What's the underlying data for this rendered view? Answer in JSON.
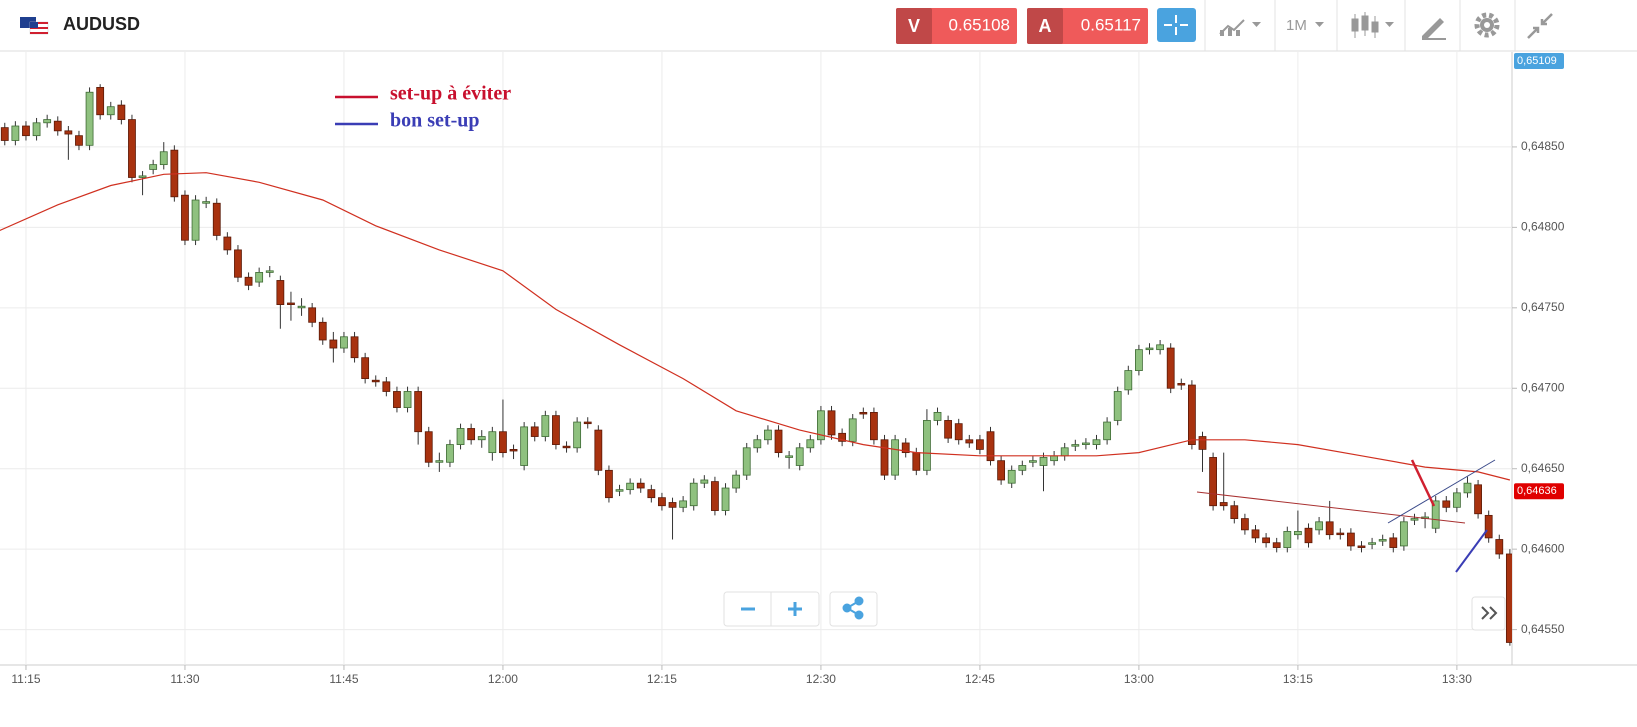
{
  "header": {
    "symbol": "AUDUSD",
    "sell_label": "V",
    "sell_price": 0.65108,
    "buy_label": "A",
    "buy_price": 0.65117,
    "timeframe": "1M"
  },
  "chart_data": {
    "type": "candlestick",
    "open": [
      0.64862,
      0.64854,
      0.64863,
      0.64857,
      0.64865,
      0.64866,
      0.6486,
      0.64857,
      0.64851,
      0.64887,
      0.6487,
      0.64876,
      0.64867,
      0.64831,
      0.64836,
      0.64839,
      0.64848,
      0.6482,
      0.64792,
      0.64815,
      0.64815,
      0.64794,
      0.64786,
      0.64769,
      0.64766,
      0.64772,
      0.64767,
      0.64753,
      0.6475,
      0.6475,
      0.64741,
      0.6473,
      0.64725,
      0.64732,
      0.64719,
      0.64705,
      0.64704,
      0.64698,
      0.64688,
      0.64698,
      0.64673,
      0.64654,
      0.64654,
      0.64665,
      0.64675,
      0.64668,
      0.6466,
      0.64673,
      0.64662,
      0.64652,
      0.64676,
      0.6467,
      0.64683,
      0.64664,
      0.64663,
      0.64679,
      0.64674,
      0.64649,
      0.64636,
      0.64637,
      0.64641,
      0.64637,
      0.64632,
      0.64629,
      0.64626,
      0.64627,
      0.64641,
      0.64642,
      0.64624,
      0.64638,
      0.64646,
      0.64663,
      0.64668,
      0.64674,
      0.64657,
      0.64652,
      0.64663,
      0.64668,
      0.64686,
      0.64672,
      0.64667,
      0.64685,
      0.64685,
      0.64668,
      0.64646,
      0.64666,
      0.6466,
      0.64649,
      0.6468,
      0.6468,
      0.64678,
      0.64668,
      0.64668,
      0.64673,
      0.64655,
      0.64641,
      0.64649,
      0.64654,
      0.64652,
      0.64655,
      0.64658,
      0.64664,
      0.64665,
      0.64665,
      0.64668,
      0.6468,
      0.64699,
      0.64711,
      0.64724,
      0.64724,
      0.64725,
      0.64703,
      0.64702,
      0.6467,
      0.64657,
      0.64629,
      0.64627,
      0.64619,
      0.64612,
      0.64607,
      0.64604,
      0.64601,
      0.64609,
      0.64613,
      0.64612,
      0.64617,
      0.6461,
      0.6461,
      0.64602,
      0.64603,
      0.64605,
      0.64607,
      0.64602,
      0.64618,
      0.64619,
      0.64613,
      0.6463,
      0.64626,
      0.64635,
      0.6464,
      0.64621,
      0.64606,
      0.64597
    ],
    "high": [
      0.64865,
      0.64866,
      0.64866,
      0.64868,
      0.6487,
      0.64869,
      0.64863,
      0.6486,
      0.64887,
      0.64889,
      0.64878,
      0.64879,
      0.6487,
      0.64835,
      0.64842,
      0.64853,
      0.64851,
      0.64823,
      0.6482,
      0.64819,
      0.64818,
      0.64797,
      0.64789,
      0.64772,
      0.64775,
      0.64776,
      0.6477,
      0.6476,
      0.64756,
      0.64753,
      0.64744,
      0.64735,
      0.64735,
      0.64735,
      0.64722,
      0.64708,
      0.64707,
      0.64701,
      0.64701,
      0.64701,
      0.64676,
      0.6466,
      0.64668,
      0.64678,
      0.64678,
      0.64674,
      0.64676,
      0.64693,
      0.64665,
      0.64679,
      0.64679,
      0.64686,
      0.64686,
      0.64667,
      0.64682,
      0.64682,
      0.64677,
      0.64652,
      0.6464,
      0.64644,
      0.64644,
      0.6464,
      0.64635,
      0.64632,
      0.64633,
      0.64644,
      0.64646,
      0.64645,
      0.64641,
      0.64649,
      0.64666,
      0.64671,
      0.64677,
      0.64677,
      0.64661,
      0.64666,
      0.64671,
      0.64689,
      0.64689,
      0.64675,
      0.64684,
      0.64688,
      0.64688,
      0.64671,
      0.64671,
      0.64669,
      0.64663,
      0.64687,
      0.64688,
      0.64683,
      0.64681,
      0.64671,
      0.64671,
      0.64676,
      0.64658,
      0.64652,
      0.64655,
      0.64658,
      0.6466,
      0.64661,
      0.64666,
      0.64668,
      0.64669,
      0.64671,
      0.64682,
      0.64701,
      0.64714,
      0.64727,
      0.64728,
      0.6473,
      0.64728,
      0.64706,
      0.64705,
      0.64673,
      0.6466,
      0.6466,
      0.6463,
      0.64622,
      0.64615,
      0.6461,
      0.64607,
      0.64614,
      0.64624,
      0.64616,
      0.6462,
      0.6463,
      0.64613,
      0.64613,
      0.64605,
      0.64607,
      0.64609,
      0.6461,
      0.6462,
      0.64622,
      0.64623,
      0.64633,
      0.64633,
      0.64638,
      0.64645,
      0.64643,
      0.64624,
      0.64609,
      0.646
    ],
    "low": [
      0.64851,
      0.64851,
      0.64854,
      0.64854,
      0.64862,
      0.64857,
      0.64842,
      0.64848,
      0.64848,
      0.64867,
      0.64867,
      0.64864,
      0.64828,
      0.6482,
      0.64833,
      0.64836,
      0.64816,
      0.64789,
      0.64789,
      0.64812,
      0.64792,
      0.64783,
      0.64766,
      0.64761,
      0.64763,
      0.64769,
      0.64737,
      0.64742,
      0.64745,
      0.64738,
      0.64727,
      0.64716,
      0.64722,
      0.64716,
      0.64703,
      0.64701,
      0.64695,
      0.64685,
      0.64685,
      0.64665,
      0.64651,
      0.64648,
      0.64651,
      0.64662,
      0.64665,
      0.64663,
      0.64655,
      0.64657,
      0.64656,
      0.64649,
      0.64667,
      0.64667,
      0.64662,
      0.6466,
      0.6466,
      0.64675,
      0.64646,
      0.64629,
      0.64633,
      0.64634,
      0.64635,
      0.64629,
      0.64624,
      0.64606,
      0.64623,
      0.64624,
      0.64638,
      0.64621,
      0.64621,
      0.64635,
      0.64643,
      0.6466,
      0.64665,
      0.64657,
      0.6465,
      0.64649,
      0.6466,
      0.64665,
      0.64668,
      0.64664,
      0.64664,
      0.64681,
      0.64665,
      0.64643,
      0.64643,
      0.64657,
      0.64646,
      0.64646,
      0.64677,
      0.64666,
      0.64665,
      0.64663,
      0.64659,
      0.64652,
      0.6464,
      0.64638,
      0.64646,
      0.64651,
      0.64636,
      0.64652,
      0.64655,
      0.64661,
      0.64662,
      0.64662,
      0.64665,
      0.64677,
      0.64696,
      0.64708,
      0.64721,
      0.64721,
      0.64697,
      0.64699,
      0.64662,
      0.64648,
      0.64624,
      0.64624,
      0.64616,
      0.64609,
      0.64604,
      0.64601,
      0.64598,
      0.64598,
      0.64606,
      0.64601,
      0.64609,
      0.64606,
      0.64606,
      0.64599,
      0.64598,
      0.646,
      0.64602,
      0.64598,
      0.64599,
      0.64615,
      0.64613,
      0.6461,
      0.64623,
      0.64623,
      0.64632,
      0.64619,
      0.64604,
      0.64594,
      0.6454
    ],
    "close": [
      0.64854,
      0.64863,
      0.64857,
      0.64865,
      0.64867,
      0.6486,
      0.64858,
      0.64851,
      0.64884,
      0.6487,
      0.64875,
      0.64867,
      0.64831,
      0.64832,
      0.64839,
      0.64847,
      0.64819,
      0.64792,
      0.64817,
      0.64816,
      0.64795,
      0.64786,
      0.64769,
      0.64764,
      0.64772,
      0.64773,
      0.64752,
      0.64752,
      0.64751,
      0.64741,
      0.6473,
      0.64725,
      0.64732,
      0.64719,
      0.64706,
      0.64704,
      0.64698,
      0.64688,
      0.64698,
      0.64673,
      0.64654,
      0.64655,
      0.64665,
      0.64675,
      0.64668,
      0.6467,
      0.64673,
      0.6466,
      0.64661,
      0.64676,
      0.6467,
      0.64683,
      0.64665,
      0.64663,
      0.64679,
      0.64678,
      0.64649,
      0.64632,
      0.64637,
      0.64641,
      0.64638,
      0.64632,
      0.64627,
      0.64626,
      0.6463,
      0.64641,
      0.64643,
      0.64624,
      0.64638,
      0.64646,
      0.64663,
      0.64668,
      0.64674,
      0.6466,
      0.64658,
      0.64663,
      0.64668,
      0.64686,
      0.64671,
      0.64667,
      0.64681,
      0.64684,
      0.64668,
      0.64646,
      0.64668,
      0.6466,
      0.64649,
      0.6468,
      0.64685,
      0.64669,
      0.64668,
      0.64666,
      0.64662,
      0.64655,
      0.64643,
      0.64649,
      0.64652,
      0.64655,
      0.64657,
      0.64658,
      0.64663,
      0.64665,
      0.64666,
      0.64668,
      0.64679,
      0.64698,
      0.64711,
      0.64724,
      0.64725,
      0.64727,
      0.647,
      0.64702,
      0.64665,
      0.64662,
      0.64627,
      0.64627,
      0.64619,
      0.64612,
      0.64607,
      0.64604,
      0.64601,
      0.64611,
      0.64611,
      0.64604,
      0.64617,
      0.64609,
      0.64609,
      0.64602,
      0.64601,
      0.64604,
      0.64606,
      0.64601,
      0.64617,
      0.64619,
      0.6462,
      0.6463,
      0.64626,
      0.64635,
      0.64641,
      0.64622,
      0.64607,
      0.64597,
      0.64542
    ],
    "up_color": "#8fc17f",
    "down_color": "#a8320f",
    "ma": {
      "color": "#d03020",
      "x": [
        -0.5,
        5,
        10,
        15,
        19,
        24,
        30,
        35,
        41,
        47,
        52,
        58,
        64,
        69,
        75,
        81,
        86,
        92,
        98,
        103,
        107,
        112,
        117,
        122,
        128,
        134,
        139,
        142
      ],
      "values": [
        0.64798,
        0.64814,
        0.64826,
        0.64833,
        0.64834,
        0.64828,
        0.64817,
        0.64801,
        0.64786,
        0.64773,
        0.64749,
        0.64727,
        0.64706,
        0.64686,
        0.64674,
        0.64665,
        0.6466,
        0.64658,
        0.64658,
        0.64658,
        0.6466,
        0.64668,
        0.64668,
        0.64665,
        0.64658,
        0.64651,
        0.64648,
        0.64643
      ]
    },
    "xlim": [
      -0.45,
      142.2
    ],
    "xticks": [
      {
        "value": 2,
        "label": "11:15"
      },
      {
        "value": 17,
        "label": "11:30"
      },
      {
        "value": 32,
        "label": "11:45"
      },
      {
        "value": 47,
        "label": "12:00"
      },
      {
        "value": 62,
        "label": "12:15"
      },
      {
        "value": 77,
        "label": "12:30"
      },
      {
        "value": 92,
        "label": "12:45"
      },
      {
        "value": 107,
        "label": "13:00"
      },
      {
        "value": 122,
        "label": "13:15"
      },
      {
        "value": 137,
        "label": "13:30"
      }
    ],
    "ylim": [
      0.64528,
      0.64909
    ],
    "yticks": [
      {
        "value": 0.6455,
        "label": "0,64550"
      },
      {
        "value": 0.646,
        "label": "0,64600"
      },
      {
        "value": 0.6465,
        "label": "0,64650"
      },
      {
        "value": 0.647,
        "label": "0,64700"
      },
      {
        "value": 0.6475,
        "label": "0,64750"
      },
      {
        "value": 0.648,
        "label": "0,64800"
      },
      {
        "value": 0.6485,
        "label": "0,64850"
      }
    ],
    "grid": true,
    "price_tags": [
      {
        "value": 0.65109,
        "label": "0,65109",
        "color": "#4aa3df"
      },
      {
        "value": 0.64636,
        "label": "0,64636",
        "color": "#e00000"
      }
    ],
    "legend": [
      {
        "name": "set-up à éviter",
        "color": "#c8102e"
      },
      {
        "name": "bon set-up",
        "color": "#3a3db5"
      }
    ]
  }
}
